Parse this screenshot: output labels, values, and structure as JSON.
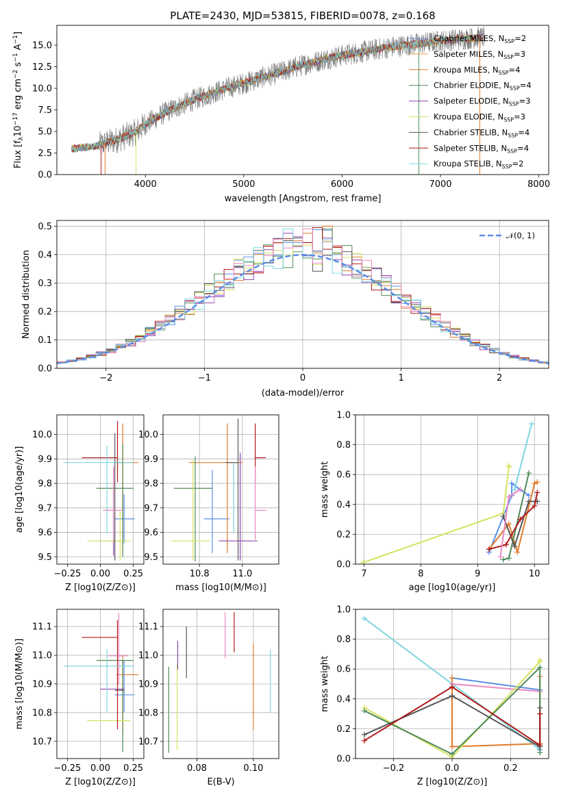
{
  "figure": {
    "title": "PLATE=2430, MJD=53815, FIBERID=0078, z=0.168"
  },
  "colors": {
    "Chabrier MILES": "#5b8ee6",
    "Salpeter MILES": "#e8a13a",
    "Kroupa MILES": "#e07b2a",
    "Chabrier ELODIE": "#4e8b57",
    "Salpeter ELODIE": "#8e44ad",
    "Kroupa ELODIE": "#d6e25c",
    "Chabrier STELIB": "#555555",
    "Salpeter STELIB": "#b01818",
    "Kroupa STELIB": "#7dd6e0",
    "Kroupa_pink": "#ea88c0",
    "data": "#7f7f7f"
  },
  "chart_data": [
    {
      "id": "spectrum",
      "type": "line",
      "title": "PLATE=2430, MJD=53815, FIBERID=0078, z=0.168",
      "xlabel": "wavelength [Angstrom, rest frame]",
      "ylabel": "Flux [f_λ 10^-17 erg cm^-2 s^-1 A^-1]",
      "xlim": [
        3100,
        8100
      ],
      "ylim": [
        0,
        17.3
      ],
      "xticks": [
        4000,
        5000,
        6000,
        7000,
        8000
      ],
      "yticks": [
        0.0,
        2.5,
        5.0,
        7.5,
        10.0,
        12.5,
        15.0
      ],
      "ytick_labels": [
        "0.0",
        "2.5",
        "5.0",
        "7.5",
        "10.0",
        "12.5",
        "15.0"
      ],
      "legend_position": "top-right",
      "legend": [
        {
          "label": "Chabrier MILES, N",
          "sub": "SSP",
          "eq": "=2",
          "color": "#5b8ee6"
        },
        {
          "label": "Salpeter MILES, N",
          "sub": "SSP",
          "eq": "=3",
          "color": "#e8a13a"
        },
        {
          "label": "Kroupa MILES, N",
          "sub": "SSP",
          "eq": "=4",
          "color": "#e07b2a"
        },
        {
          "label": "Chabrier ELODIE, N",
          "sub": "SSP",
          "eq": "=4",
          "color": "#4e8b57"
        },
        {
          "label": "Salpeter ELODIE, N",
          "sub": "SSP",
          "eq": "=3",
          "color": "#8e44ad"
        },
        {
          "label": "Kroupa ELODIE, N",
          "sub": "SSP",
          "eq": "=3",
          "color": "#d6e25c"
        },
        {
          "label": "Chabrier STELIB, N",
          "sub": "SSP",
          "eq": "=4",
          "color": "#555555"
        },
        {
          "label": "Salpeter STELIB, N",
          "sub": "SSP",
          "eq": "=4",
          "color": "#b01818"
        },
        {
          "label": "Kroupa STELIB, N",
          "sub": "SSP",
          "eq": "=2",
          "color": "#7dd6e0"
        }
      ],
      "continuum_x": [
        3250,
        3500,
        3700,
        3900,
        4000,
        4200,
        4500,
        4800,
        5000,
        5300,
        5600,
        5900,
        6200,
        6500,
        6800,
        7100,
        7400
      ],
      "continuum_y": [
        3.0,
        3.3,
        4.0,
        4.9,
        5.8,
        7.2,
        8.7,
        9.9,
        10.6,
        11.6,
        12.7,
        13.6,
        14.2,
        14.8,
        15.2,
        15.6,
        15.9
      ]
    },
    {
      "id": "residuals",
      "type": "histogram",
      "xlabel": "(data-model)/error",
      "ylabel": "Normed distribution",
      "xlim": [
        -2.5,
        2.5
      ],
      "ylim": [
        0,
        0.52
      ],
      "xticks": [
        -2,
        -1,
        0,
        1,
        2
      ],
      "xtick_labels": [
        "−2",
        "−1",
        "0",
        "1",
        "2"
      ],
      "yticks": [
        0.0,
        0.1,
        0.2,
        0.3,
        0.4,
        0.5
      ],
      "ytick_labels": [
        "0.0",
        "0.1",
        "0.2",
        "0.3",
        "0.4",
        "0.5"
      ],
      "legend": [
        {
          "label": "𝒩(0, 1)",
          "color": "#5b8ee6",
          "style": "dashed"
        }
      ],
      "bin_width": 0.1,
      "bin_start": -2.5
    },
    {
      "id": "age_vs_Z",
      "type": "scatter",
      "xlabel": "Z [log10(Z/Z⊙)]",
      "ylabel": "age [log10(age/yr)]",
      "xlim": [
        -0.33,
        0.33
      ],
      "ylim": [
        9.47,
        10.08
      ],
      "xticks": [
        -0.25,
        0.0,
        0.25
      ],
      "xtick_labels": [
        "−0.25",
        "0.00",
        "0.25"
      ],
      "yticks": [
        9.5,
        9.6,
        9.7,
        9.8,
        9.9,
        10.0
      ],
      "ytick_labels": [
        "9.5",
        "9.6",
        "9.7",
        "9.8",
        "9.9",
        "10.0"
      ],
      "points": [
        {
          "x": 0.18,
          "y": 9.655,
          "xerr": [
            0.07,
            0.08
          ],
          "yerr": [
            0.1,
            0.1
          ],
          "color": "#5b8ee6"
        },
        {
          "x": 0.17,
          "y": 9.885,
          "xerr": [
            0.05,
            0.12
          ],
          "yerr": [
            0.37,
            0.16
          ],
          "color": "#e07b2a"
        },
        {
          "x": 0.17,
          "y": 9.78,
          "xerr": [
            0.2,
            0.08
          ],
          "yerr": [
            0.28,
            0.18
          ],
          "color": "#4e8b57"
        },
        {
          "x": 0.1,
          "y": 9.565,
          "xerr": [
            0.1,
            0.08
          ],
          "yerr": [
            0.06,
            0.3
          ],
          "color": "#8e44ad"
        },
        {
          "x": 0.15,
          "y": 9.565,
          "xerr": [
            0.25,
            0.08
          ],
          "yerr": [
            0.08,
            0.12
          ],
          "color": "#d6e25c"
        },
        {
          "x": 0.11,
          "y": 9.885,
          "xerr": [
            0.0,
            0.07
          ],
          "yerr": [
            0.4,
            0.12
          ],
          "color": "#555555"
        },
        {
          "x": 0.13,
          "y": 9.905,
          "xerr": [
            0.27,
            0.0
          ],
          "yerr": [
            0.1,
            0.15
          ],
          "color": "#b01818"
        },
        {
          "x": 0.05,
          "y": 9.885,
          "xerr": [
            0.33,
            0.2
          ],
          "yerr": [
            0.29,
            0.07
          ],
          "color": "#7dd6e0"
        },
        {
          "x": 0.1,
          "y": 9.69,
          "xerr": [
            0.08,
            0.07
          ],
          "yerr": [
            0.12,
            0.18
          ],
          "color": "#ea88c0"
        }
      ]
    },
    {
      "id": "age_vs_mass",
      "type": "scatter",
      "xlabel": "mass [log10(M/M⊙)]",
      "ylabel": "",
      "xlim": [
        10.63,
        11.17
      ],
      "ylim": [
        9.47,
        10.08
      ],
      "xticks": [
        10.8,
        11.0
      ],
      "xtick_labels": [
        "10.8",
        "11.0"
      ],
      "yticks": [
        9.5,
        9.6,
        9.7,
        9.8,
        9.9,
        10.0
      ],
      "ytick_labels": [
        "9.5",
        "9.6",
        "9.7",
        "9.8",
        "9.9",
        "10.0"
      ],
      "points": [
        {
          "x": 10.86,
          "y": 9.655,
          "xerr": [
            0.04,
            0.08
          ],
          "yerr": [
            0.14,
            0.2
          ],
          "color": "#5b8ee6"
        },
        {
          "x": 10.93,
          "y": 9.885,
          "xerr": [
            0.18,
            0.07
          ],
          "yerr": [
            0.37,
            0.16
          ],
          "color": "#e07b2a"
        },
        {
          "x": 10.78,
          "y": 9.78,
          "xerr": [
            0.1,
            0.08
          ],
          "yerr": [
            0.3,
            0.13
          ],
          "color": "#4e8b57"
        },
        {
          "x": 10.99,
          "y": 9.565,
          "xerr": [
            0.1,
            0.08
          ],
          "yerr": [
            0.08,
            0.36
          ],
          "color": "#8e44ad"
        },
        {
          "x": 10.77,
          "y": 9.565,
          "xerr": [
            0.1,
            0.08
          ],
          "yerr": [
            0.08,
            0.33
          ],
          "color": "#d6e25c"
        },
        {
          "x": 10.98,
          "y": 9.885,
          "xerr": [
            0.06,
            0.0
          ],
          "yerr": [
            0.4,
            0.18
          ],
          "color": "#555555"
        },
        {
          "x": 11.06,
          "y": 9.905,
          "xerr": [
            0.0,
            0.05
          ],
          "yerr": [
            0.1,
            0.14
          ],
          "color": "#b01818"
        },
        {
          "x": 10.96,
          "y": 9.885,
          "xerr": [
            0.0,
            0.0
          ],
          "yerr": [
            0.29,
            0.0
          ],
          "color": "#7dd6e0"
        },
        {
          "x": 11.06,
          "y": 9.69,
          "xerr": [
            0.0,
            0.05
          ],
          "yerr": [
            0.12,
            0.18
          ],
          "color": "#ea88c0"
        }
      ]
    },
    {
      "id": "massweight_vs_age",
      "type": "line",
      "xlabel": "age [log10(age/yr)]",
      "ylabel": "mass weight",
      "xlim": [
        6.85,
        10.25
      ],
      "ylim": [
        0,
        1
      ],
      "xticks": [
        7,
        8,
        9,
        10
      ],
      "xtick_labels": [
        "7",
        "8",
        "9",
        "10"
      ],
      "yticks": [
        0.0,
        0.2,
        0.4,
        0.6,
        0.8,
        1.0
      ],
      "ytick_labels": [
        "0.0",
        "0.2",
        "0.4",
        "0.6",
        "0.8",
        "1.0"
      ],
      "series": [
        {
          "color": "#5b8ee6",
          "x": [
            9.2,
            9.6,
            9.6,
            9.9
          ],
          "y": [
            0.08,
            0.46,
            0.54,
            0.46
          ]
        },
        {
          "color": "#e07b2a",
          "x": [
            9.2,
            9.55,
            9.7,
            10.0,
            10.05
          ],
          "y": [
            0.1,
            0.27,
            0.08,
            0.54,
            0.55
          ]
        },
        {
          "color": "#4e8b57",
          "x": [
            9.45,
            9.55,
            9.9
          ],
          "y": [
            0.03,
            0.04,
            0.61
          ]
        },
        {
          "color": "#d6e25c",
          "x": [
            6.98,
            9.45,
            9.55,
            9.55
          ],
          "y": [
            0.01,
            0.34,
            0.65,
            0.66
          ]
        },
        {
          "color": "#555555",
          "x": [
            9.45,
            9.65,
            9.9,
            10.05
          ],
          "y": [
            0.32,
            0.12,
            0.42,
            0.42
          ]
        },
        {
          "color": "#b01818",
          "x": [
            9.2,
            9.5,
            9.75,
            10.0,
            10.05
          ],
          "y": [
            0.1,
            0.13,
            0.3,
            0.39,
            0.48
          ]
        },
        {
          "color": "#7dd6e0",
          "x": [
            9.65,
            9.95
          ],
          "y": [
            0.5,
            0.94
          ]
        },
        {
          "color": "#ea88c0",
          "x": [
            9.4,
            9.55,
            9.75
          ],
          "y": [
            0.05,
            0.45,
            0.5
          ]
        }
      ]
    },
    {
      "id": "mass_vs_Z",
      "type": "scatter",
      "xlabel": "Z [log10(Z/Z⊙)]",
      "ylabel": "mass [log10(M/M⊙)]",
      "xlim": [
        -0.33,
        0.33
      ],
      "ylim": [
        10.64,
        11.16
      ],
      "xticks": [
        -0.25,
        0.0,
        0.25
      ],
      "xtick_labels": [
        "−0.25",
        "0.00",
        "0.25"
      ],
      "yticks": [
        10.7,
        10.8,
        10.9,
        11.0,
        11.1
      ],
      "ytick_labels": [
        "10.7",
        "10.8",
        "10.9",
        "11.0",
        "11.1"
      ],
      "points": [
        {
          "x": 0.18,
          "y": 10.862,
          "xerr": [
            0.07,
            0.08
          ],
          "yerr": [
            0.06,
            0.12
          ],
          "color": "#5b8ee6"
        },
        {
          "x": 0.17,
          "y": 10.932,
          "xerr": [
            0.05,
            0.12
          ],
          "yerr": [
            0.2,
            0.07
          ],
          "color": "#e07b2a"
        },
        {
          "x": 0.17,
          "y": 10.982,
          "xerr": [
            0.2,
            0.08
          ],
          "yerr": [
            0.32,
            0.0
          ],
          "color": "#4e8b57"
        },
        {
          "x": 0.1,
          "y": 10.882,
          "xerr": [
            0.1,
            0.08
          ],
          "yerr": [
            0.0,
            0.0
          ],
          "color": "#8e44ad"
        },
        {
          "x": 0.15,
          "y": 10.772,
          "xerr": [
            0.25,
            0.08
          ],
          "yerr": [
            0.0,
            0.0
          ],
          "color": "#d6e25c"
        },
        {
          "x": 0.11,
          "y": 10.878,
          "xerr": [
            0.0,
            0.07
          ],
          "yerr": [
            0.0,
            0.0
          ],
          "color": "#555555"
        },
        {
          "x": 0.13,
          "y": 11.062,
          "xerr": [
            0.27,
            0.0
          ],
          "yerr": [
            0.32,
            0.06
          ],
          "color": "#b01818"
        },
        {
          "x": 0.05,
          "y": 10.962,
          "xerr": [
            0.33,
            0.2
          ],
          "yerr": [
            0.16,
            0.06
          ],
          "color": "#7dd6e0"
        },
        {
          "x": 0.14,
          "y": 10.998,
          "xerr": [
            0.08,
            0.07
          ],
          "yerr": [
            0.1,
            0.15
          ],
          "color": "#ea88c0"
        }
      ]
    },
    {
      "id": "mass_vs_ebv",
      "type": "scatter",
      "xlabel": "E(B-V)",
      "ylabel": "",
      "xlim": [
        0.068,
        0.109
      ],
      "ylim": [
        10.64,
        11.16
      ],
      "xticks": [
        0.08,
        0.1
      ],
      "xtick_labels": [
        "0.08",
        "0.10"
      ],
      "yticks": [
        10.7,
        10.8,
        10.9,
        11.0,
        11.1
      ],
      "ytick_labels": [
        "10.7",
        "10.8",
        "10.9",
        "11.0",
        "11.1"
      ],
      "points": [
        {
          "x": 0.07,
          "y": 10.81,
          "yerr": [
            0.15,
            0.15
          ],
          "color": "#4e8b57"
        },
        {
          "x": 0.073,
          "y": 10.82,
          "yerr": [
            0.15,
            0.15
          ],
          "color": "#d6e25c"
        },
        {
          "x": 0.0732,
          "y": 11.0,
          "yerr": [
            0.05,
            0.05
          ],
          "color": "#8e44ad"
        },
        {
          "x": 0.0763,
          "y": 11.01,
          "yerr": [
            0.09,
            0.09
          ],
          "color": "#555555"
        },
        {
          "x": 0.09,
          "y": 11.07,
          "yerr": [
            0.08,
            0.08
          ],
          "color": "#ea88c0"
        },
        {
          "x": 0.0932,
          "y": 11.08,
          "yerr": [
            0.07,
            0.07
          ],
          "color": "#b01818"
        },
        {
          "x": 0.1,
          "y": 10.89,
          "yerr": [
            0.15,
            0.15
          ],
          "color": "#e07b2a"
        },
        {
          "x": 0.106,
          "y": 10.91,
          "yerr": [
            0.11,
            0.11
          ],
          "color": "#7dd6e0"
        }
      ]
    },
    {
      "id": "massweight_vs_Z",
      "type": "line",
      "xlabel": "Z [log10(Z/Z⊙)]",
      "ylabel": "mass weight",
      "xlim": [
        -0.33,
        0.33
      ],
      "ylim": [
        0,
        1
      ],
      "xticks": [
        -0.2,
        0.0,
        0.2
      ],
      "xtick_labels": [
        "−0.2",
        "0.0",
        "0.2"
      ],
      "yticks": [
        0.0,
        0.2,
        0.4,
        0.6,
        0.8,
        1.0
      ],
      "ytick_labels": [
        "0.0",
        "0.2",
        "0.4",
        "0.6",
        "0.8",
        "1.0"
      ],
      "series": [
        {
          "color": "#7dd6e0",
          "x": [
            -0.3,
            0.0,
            0.3
          ],
          "y": [
            0.94,
            0.5,
            0.06
          ]
        },
        {
          "color": "#5b8ee6",
          "x": [
            0.0,
            0.3,
            0.3
          ],
          "y": [
            0.54,
            0.46,
            0.06
          ]
        },
        {
          "color": "#e07b2a",
          "x": [
            0.0,
            0.0,
            0.3,
            0.3
          ],
          "y": [
            0.54,
            0.08,
            0.1,
            0.55
          ]
        },
        {
          "color": "#ea88c0",
          "x": [
            0.0,
            0.3
          ],
          "y": [
            0.5,
            0.45
          ]
        },
        {
          "color": "#d6e25c",
          "x": [
            -0.3,
            0.0,
            0.3,
            0.3
          ],
          "y": [
            0.34,
            0.01,
            0.65,
            0.66
          ]
        },
        {
          "color": "#4e8b57",
          "x": [
            -0.3,
            0.0,
            0.3,
            0.3
          ],
          "y": [
            0.32,
            0.03,
            0.61,
            0.04
          ]
        },
        {
          "color": "#555555",
          "x": [
            -0.3,
            0.0,
            0.3,
            0.3
          ],
          "y": [
            0.16,
            0.42,
            0.08,
            0.34
          ]
        },
        {
          "color": "#b01818",
          "x": [
            -0.3,
            0.0,
            0.3,
            0.3
          ],
          "y": [
            0.12,
            0.48,
            0.09,
            0.3
          ]
        }
      ]
    }
  ]
}
